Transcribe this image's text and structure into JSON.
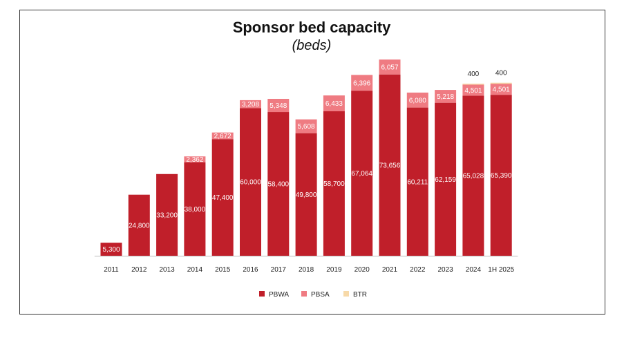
{
  "colors": {
    "PBWA": "#c01f2a",
    "PBSA": "#ef7b82",
    "BTR": "#f7d9a8"
  },
  "chart_data": {
    "type": "bar",
    "stacked": true,
    "title": "Sponsor bed capacity",
    "subtitle": "(beds)",
    "xlabel": "",
    "ylabel": "",
    "ylim": [
      0,
      82000
    ],
    "grid": false,
    "legend_position": "bottom",
    "categories": [
      "2011",
      "2012",
      "2013",
      "2014",
      "2015",
      "2016",
      "2017",
      "2018",
      "2019",
      "2020",
      "2021",
      "2022",
      "2023",
      "2024",
      "1H 2025"
    ],
    "series": [
      {
        "name": "PBWA",
        "values": [
          5300,
          24800,
          33200,
          38000,
          47400,
          60000,
          58400,
          49800,
          58700,
          67064,
          73656,
          60211,
          62159,
          65028,
          65390
        ],
        "labels": [
          "5,300",
          "24,800",
          "33,200",
          "38,000",
          "47,400",
          "60,000",
          "58,400",
          "49,800",
          "58,700",
          "67,064",
          "73,656",
          "60,211",
          "62,159",
          "65,028",
          "65,390"
        ]
      },
      {
        "name": "PBSA",
        "values": [
          0,
          0,
          0,
          2362,
          2672,
          3208,
          5348,
          5608,
          6433,
          6396,
          6057,
          6080,
          5218,
          4501,
          4501
        ],
        "labels": [
          "",
          "",
          "",
          "2,362",
          "2,672",
          "3,208",
          "5,348",
          "5,608",
          "6,433",
          "6,396",
          "6,057",
          "6,080",
          "5,218",
          "4,501",
          "4,501"
        ]
      },
      {
        "name": "BTR",
        "values": [
          0,
          0,
          0,
          0,
          0,
          0,
          0,
          0,
          0,
          0,
          0,
          0,
          0,
          400,
          400
        ],
        "labels": [
          "",
          "",
          "",
          "",
          "",
          "",
          "",
          "",
          "",
          "",
          "",
          "",
          "",
          "400",
          "400"
        ]
      }
    ]
  }
}
